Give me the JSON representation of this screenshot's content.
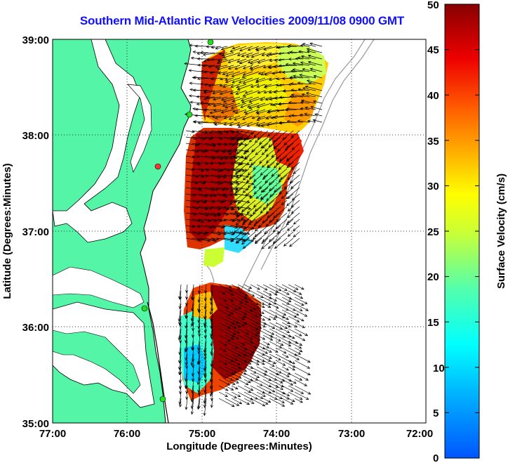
{
  "title": "Southern Mid-Atlantic Raw Velocities 2009/11/08 0900 GMT",
  "x_axis": {
    "label": "Longitude (Degrees:Minutes)",
    "ticks": [
      "77:00",
      "76:00",
      "75:00",
      "74:00",
      "73:00",
      "72:00"
    ]
  },
  "y_axis": {
    "label": "Latitude (Degrees:Minutes)",
    "ticks": [
      "39:00",
      "38:00",
      "37:00",
      "36:00",
      "35:00"
    ]
  },
  "colorbar": {
    "label": "Surface Velocity (cm/s)",
    "ticks": [
      "50",
      "45",
      "40",
      "35",
      "30",
      "25",
      "20",
      "15",
      "10",
      "5",
      "0"
    ],
    "min": 0,
    "max": 50
  },
  "colors": {
    "land": "#55f5a8",
    "water": "#ffffff",
    "title": "#1010ff",
    "stations": "#22dd22",
    "station_offline": "#ff3333"
  },
  "map_extent": {
    "lon_min": -77.0,
    "lon_max": -72.0,
    "lat_min": 35.0,
    "lat_max": 39.0
  }
}
